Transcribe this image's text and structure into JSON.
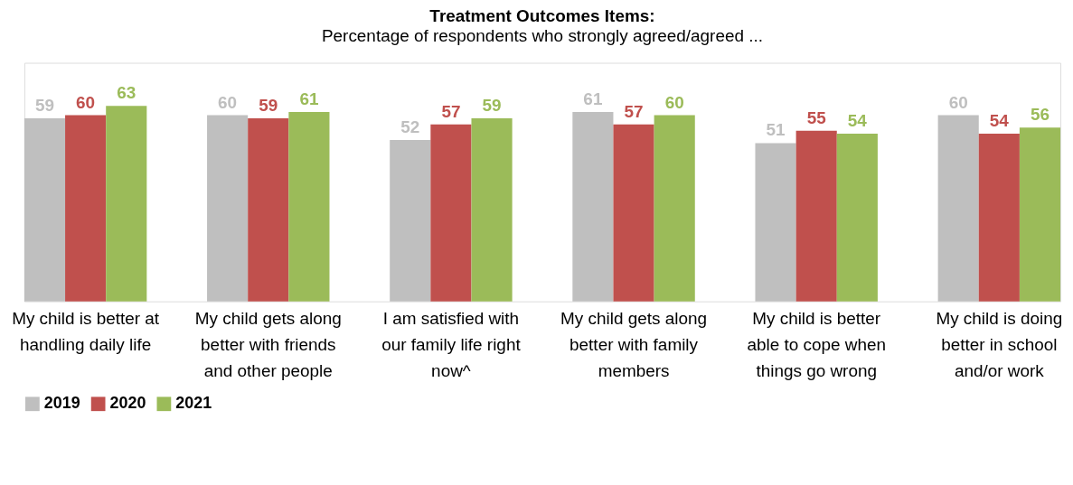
{
  "chart_data": {
    "type": "bar",
    "title": "Treatment Outcomes Items:",
    "subtitle": "Percentage of respondents who strongly agreed/agreed ...",
    "categories": [
      "My child is better at handling daily life",
      "My child gets along better with friends and other people",
      "I am satisfied with our family life right now^",
      "My child gets along better with family members",
      "My child is better able to cope when things go wrong",
      "My child is doing better in school and/or work"
    ],
    "series": [
      {
        "name": "2019",
        "color": "#bfbfbf",
        "values": [
          59,
          60,
          52,
          61,
          51,
          60
        ]
      },
      {
        "name": "2020",
        "color": "#c0504d",
        "values": [
          60,
          59,
          57,
          57,
          55,
          54
        ]
      },
      {
        "name": "2021",
        "color": "#9bbb59",
        "values": [
          63,
          61,
          59,
          60,
          54,
          56
        ]
      }
    ],
    "data_labels": true,
    "legend": "bottom",
    "grid": false
  }
}
